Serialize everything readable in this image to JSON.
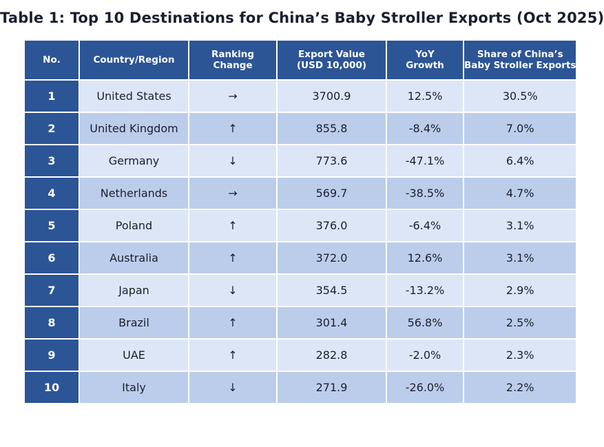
{
  "chart_data": {
    "type": "table",
    "title": "Table 1: Top 10 Destinations for China’s Baby Stroller Exports (Oct 2025)",
    "columns": [
      [
        "No."
      ],
      [
        "Country/Region"
      ],
      [
        "Ranking",
        "Change"
      ],
      [
        "Export Value",
        "(USD 10,000)"
      ],
      [
        "YoY",
        "Growth"
      ],
      [
        "Share of China’s",
        "Baby Stroller Exports"
      ]
    ],
    "rows": [
      [
        "1",
        "United States",
        "→",
        "3700.9",
        "12.5%",
        "30.5%"
      ],
      [
        "2",
        "United Kingdom",
        "↑",
        "855.8",
        "-8.4%",
        "7.0%"
      ],
      [
        "3",
        "Germany",
        "↓",
        "773.6",
        "-47.1%",
        "6.4%"
      ],
      [
        "4",
        "Netherlands",
        "→",
        "569.7",
        "-38.5%",
        "4.7%"
      ],
      [
        "5",
        "Poland",
        "↑",
        "376.0",
        "-6.4%",
        "3.1%"
      ],
      [
        "6",
        "Australia",
        "↑",
        "372.0",
        "12.6%",
        "3.1%"
      ],
      [
        "7",
        "Japan",
        "↓",
        "354.5",
        "-13.2%",
        "2.9%"
      ],
      [
        "8",
        "Brazil",
        "↑",
        "301.4",
        "56.8%",
        "2.5%"
      ],
      [
        "9",
        "UAE",
        "↑",
        "282.8",
        "-2.0%",
        "2.3%"
      ],
      [
        "10",
        "Italy",
        "↓",
        "271.9",
        "-26.0%",
        "2.2%"
      ]
    ]
  },
  "colors": {
    "header_bg": "#2c5596",
    "row_light": "#dce6f7",
    "row_dark": "#bccdeb",
    "title_text": "#1a1f2e"
  }
}
